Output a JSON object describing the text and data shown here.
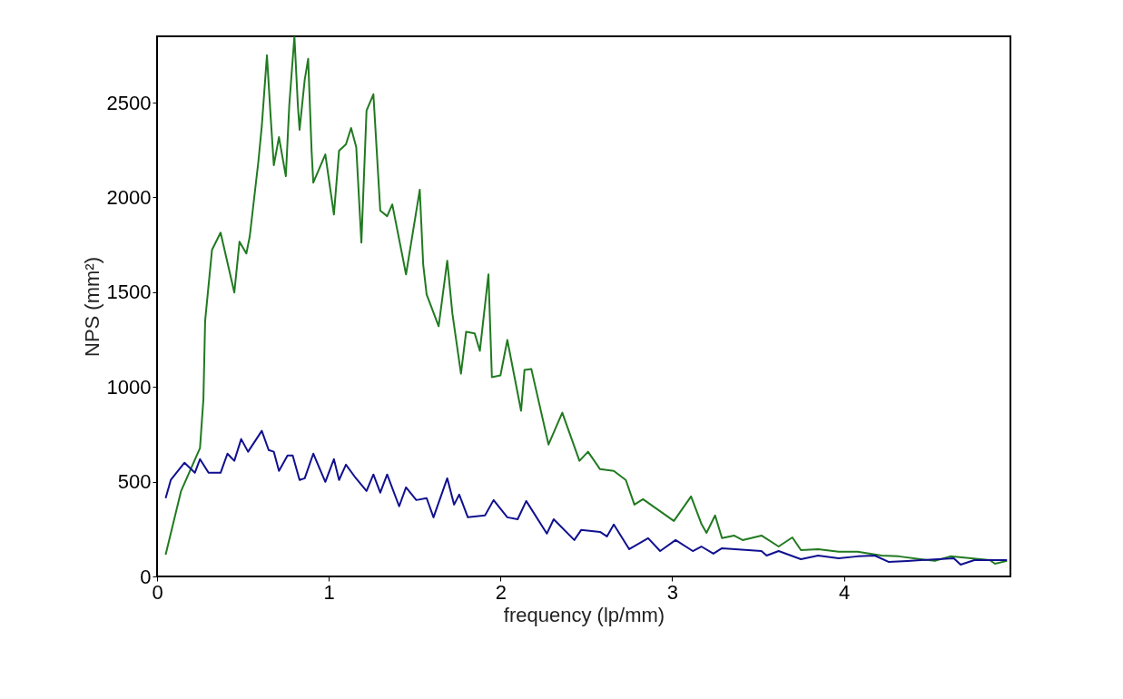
{
  "chart_data": {
    "type": "line",
    "xlabel": "frequency (lp/mm)",
    "ylabel": "NPS (mm²)",
    "xlim": [
      0,
      4.97
    ],
    "xticks": [
      0,
      1,
      2,
      3,
      4
    ],
    "ylim": [
      0,
      2850
    ],
    "yticks": [
      0,
      500,
      1000,
      1500,
      2000,
      2500
    ],
    "grid": false,
    "line_style": "solid",
    "marker": "none",
    "series": [
      {
        "color": "#217a21",
        "x": [
          0.05,
          0.14,
          0.25,
          0.27,
          0.28,
          0.32,
          0.37,
          0.45,
          0.48,
          0.52,
          0.54,
          0.59,
          0.61,
          0.64,
          0.66,
          0.68,
          0.71,
          0.75,
          0.77,
          0.8,
          0.82,
          0.83,
          0.86,
          0.88,
          0.9,
          0.91,
          0.98,
          1.03,
          1.06,
          1.1,
          1.13,
          1.16,
          1.19,
          1.22,
          1.26,
          1.3,
          1.34,
          1.37,
          1.45,
          1.53,
          1.55,
          1.57,
          1.64,
          1.69,
          1.72,
          1.77,
          1.8,
          1.85,
          1.88,
          1.93,
          1.95,
          2.0,
          2.04,
          2.12,
          2.14,
          2.18,
          2.28,
          2.36,
          2.46,
          2.51,
          2.58,
          2.66,
          2.73,
          2.78,
          2.83,
          3.01,
          3.11,
          3.17,
          3.2,
          3.25,
          3.29,
          3.36,
          3.41,
          3.52,
          3.62,
          3.7,
          3.75,
          3.85,
          3.97,
          4.08,
          4.22,
          4.32,
          4.53,
          4.62,
          4.85,
          4.88,
          4.95
        ],
        "values": [
          115,
          451,
          677,
          936,
          1349,
          1723,
          1814,
          1498,
          1766,
          1704,
          1795,
          2189,
          2376,
          2750,
          2448,
          2170,
          2318,
          2112,
          2486,
          2850,
          2486,
          2357,
          2621,
          2731,
          2246,
          2078,
          2227,
          1910,
          2246,
          2280,
          2366,
          2266,
          1762,
          2458,
          2544,
          1930,
          1901,
          1963,
          1594,
          2040,
          1646,
          1488,
          1320,
          1666,
          1387,
          1070,
          1291,
          1282,
          1190,
          1594,
          1051,
          1061,
          1248,
          874,
          1090,
          1094,
          696,
          864,
          610,
          658,
          566,
          557,
          509,
          379,
          408,
          293,
          422,
          278,
          230,
          322,
          202,
          216,
          192,
          216,
          158,
          206,
          139,
          144,
          130,
          130,
          110,
          106,
          82,
          106,
          86,
          67,
          82
        ]
      },
      {
        "color": "#10108f",
        "x": [
          0.05,
          0.08,
          0.16,
          0.22,
          0.25,
          0.3,
          0.37,
          0.41,
          0.45,
          0.49,
          0.53,
          0.61,
          0.65,
          0.68,
          0.71,
          0.76,
          0.79,
          0.83,
          0.86,
          0.91,
          0.98,
          1.03,
          1.06,
          1.1,
          1.15,
          1.22,
          1.26,
          1.3,
          1.34,
          1.41,
          1.45,
          1.51,
          1.57,
          1.61,
          1.69,
          1.73,
          1.76,
          1.81,
          1.91,
          1.96,
          2.04,
          2.1,
          2.15,
          2.27,
          2.31,
          2.43,
          2.47,
          2.58,
          2.62,
          2.66,
          2.75,
          2.86,
          2.93,
          3.02,
          3.12,
          3.17,
          3.24,
          3.29,
          3.52,
          3.55,
          3.62,
          3.75,
          3.85,
          3.97,
          4.08,
          4.18,
          4.26,
          4.37,
          4.64,
          4.68,
          4.76,
          4.95
        ],
        "values": [
          413,
          509,
          600,
          547,
          619,
          547,
          547,
          648,
          610,
          725,
          658,
          768,
          667,
          658,
          557,
          638,
          638,
          509,
          518,
          648,
          499,
          619,
          509,
          590,
          528,
          451,
          538,
          442,
          538,
          370,
          470,
          403,
          413,
          312,
          518,
          379,
          432,
          312,
          322,
          403,
          312,
          302,
          398,
          226,
          302,
          192,
          245,
          235,
          211,
          274,
          144,
          202,
          134,
          192,
          134,
          158,
          120,
          149,
          134,
          110,
          134,
          91,
          110,
          96,
          106,
          110,
          77,
          82,
          96,
          62,
          86,
          86
        ]
      }
    ]
  }
}
